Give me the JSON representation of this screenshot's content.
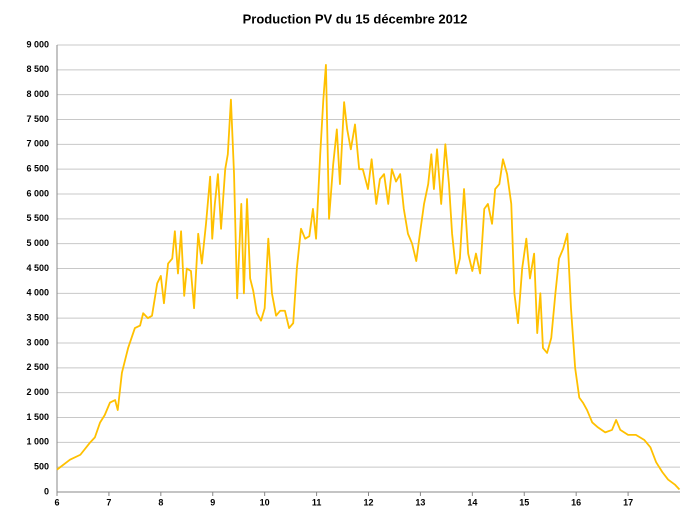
{
  "chart_data": {
    "type": "line",
    "title": "Production PV du 15 décembre 2012",
    "x": [
      6.0,
      6.25,
      6.45,
      6.64,
      6.73,
      6.83,
      6.92,
      7.02,
      7.12,
      7.17,
      7.25,
      7.37,
      7.5,
      7.6,
      7.66,
      7.75,
      7.83,
      7.93,
      8.0,
      8.06,
      8.14,
      8.22,
      8.27,
      8.33,
      8.39,
      8.45,
      8.5,
      8.58,
      8.64,
      8.72,
      8.79,
      8.87,
      8.95,
      8.99,
      9.04,
      9.1,
      9.16,
      9.24,
      9.29,
      9.35,
      9.41,
      9.47,
      9.55,
      9.6,
      9.66,
      9.72,
      9.78,
      9.85,
      9.93,
      10.0,
      10.07,
      10.14,
      10.22,
      10.3,
      10.39,
      10.47,
      10.55,
      10.62,
      10.7,
      10.78,
      10.86,
      10.93,
      10.99,
      11.07,
      11.13,
      11.18,
      11.24,
      11.32,
      11.39,
      11.45,
      11.53,
      11.59,
      11.66,
      11.74,
      11.82,
      11.89,
      11.99,
      12.06,
      12.15,
      12.22,
      12.3,
      12.38,
      12.45,
      12.53,
      12.61,
      12.68,
      12.76,
      12.84,
      12.92,
      12.99,
      13.07,
      13.15,
      13.21,
      13.26,
      13.32,
      13.4,
      13.48,
      13.55,
      13.61,
      13.69,
      13.76,
      13.84,
      13.92,
      14.0,
      14.07,
      14.15,
      14.23,
      14.3,
      14.38,
      14.44,
      14.52,
      14.59,
      14.67,
      14.75,
      14.81,
      14.88,
      14.96,
      15.04,
      15.11,
      15.19,
      15.25,
      15.31,
      15.36,
      15.44,
      15.52,
      15.6,
      15.67,
      15.75,
      15.83,
      15.9,
      15.98,
      16.06,
      16.13,
      16.21,
      16.31,
      16.42,
      16.56,
      16.69,
      16.77,
      16.85,
      17.0,
      17.15,
      17.31,
      17.43,
      17.54,
      17.66,
      17.77,
      17.9,
      17.99
    ],
    "series": [
      {
        "name": "Production PV",
        "color": "#ffc000",
        "values": [
          450,
          650,
          750,
          1000,
          1100,
          1400,
          1550,
          1800,
          1850,
          1650,
          2400,
          2900,
          3300,
          3350,
          3600,
          3500,
          3550,
          4200,
          4350,
          3800,
          4600,
          4700,
          5250,
          4400,
          5250,
          3950,
          4500,
          4450,
          3700,
          5200,
          4600,
          5400,
          6350,
          5100,
          5800,
          6400,
          5300,
          6500,
          6800,
          7900,
          6400,
          3900,
          5800,
          4000,
          5900,
          4300,
          4050,
          3600,
          3450,
          3700,
          5100,
          4000,
          3550,
          3650,
          3650,
          3300,
          3400,
          4500,
          5300,
          5100,
          5150,
          5700,
          5100,
          6800,
          7900,
          8600,
          5500,
          6600,
          7300,
          6200,
          7850,
          7300,
          6900,
          7400,
          6500,
          6500,
          6100,
          6700,
          5800,
          6300,
          6400,
          5800,
          6500,
          6250,
          6400,
          5700,
          5200,
          5000,
          4650,
          5200,
          5800,
          6200,
          6800,
          6100,
          6900,
          5800,
          7000,
          6200,
          5200,
          4400,
          4700,
          6100,
          4800,
          4450,
          4800,
          4400,
          5700,
          5800,
          5400,
          6100,
          6200,
          6700,
          6400,
          5800,
          4000,
          3400,
          4500,
          5100,
          4300,
          4800,
          3200,
          4000,
          2900,
          2800,
          3100,
          4000,
          4700,
          4900,
          5200,
          3700,
          2500,
          1900,
          1800,
          1650,
          1400,
          1300,
          1200,
          1250,
          1450,
          1250,
          1150,
          1150,
          1050,
          900,
          600,
          400,
          250,
          150,
          50
        ]
      }
    ],
    "xlim": [
      6,
      18
    ],
    "xticks": [
      6,
      7,
      8,
      9,
      10,
      11,
      12,
      13,
      14,
      15,
      16,
      17
    ],
    "ylim": [
      0,
      9000
    ],
    "yticks": [
      0,
      500,
      {
        "value": 1000,
        "label": "1 000"
      },
      {
        "value": 1500,
        "label": "1 500"
      },
      {
        "value": 2000,
        "label": "2 000"
      },
      {
        "value": 2500,
        "label": "2 500"
      },
      {
        "value": 3000,
        "label": "3 000"
      },
      {
        "value": 3500,
        "label": "3 500"
      },
      {
        "value": 4000,
        "label": "4 000"
      },
      {
        "value": 4500,
        "label": "4 500"
      },
      {
        "value": 5000,
        "label": "5 000"
      },
      {
        "value": 5500,
        "label": "5 500"
      },
      {
        "value": 6000,
        "label": "6 000"
      },
      {
        "value": 6500,
        "label": "6 500"
      },
      {
        "value": 7000,
        "label": "7 000"
      },
      {
        "value": 7500,
        "label": "7 500"
      },
      {
        "value": 8000,
        "label": "8 000"
      },
      {
        "value": 8500,
        "label": "8 500"
      },
      {
        "value": 9000,
        "label": "9 000"
      }
    ],
    "grid": true
  }
}
